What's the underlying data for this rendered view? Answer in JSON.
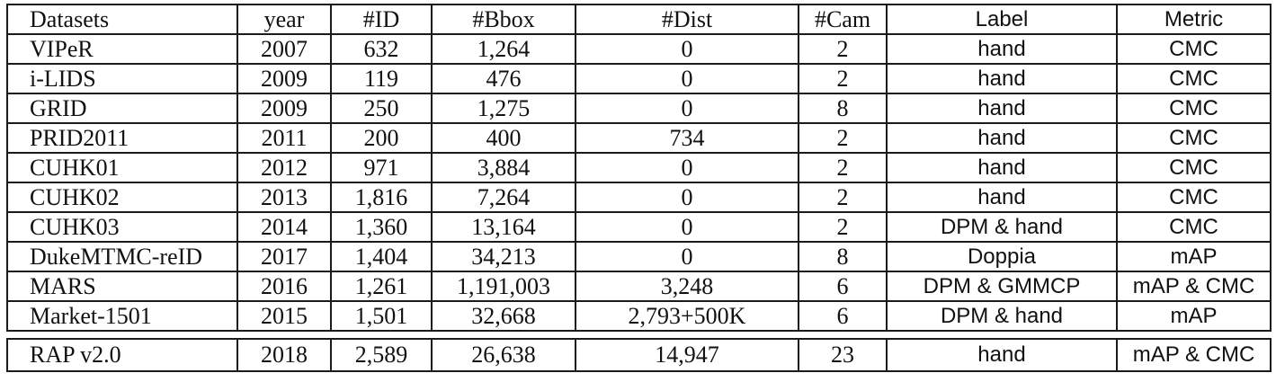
{
  "headers": [
    "Datasets",
    "year",
    "#ID",
    "#Bbox",
    "#Dist",
    "#Cam",
    "Label",
    "Metric"
  ],
  "rows": [
    [
      "VIPeR",
      "2007",
      "632",
      "1,264",
      "0",
      "2",
      "hand",
      "CMC"
    ],
    [
      "i-LIDS",
      "2009",
      "119",
      "476",
      "0",
      "2",
      "hand",
      "CMC"
    ],
    [
      "GRID",
      "2009",
      "250",
      "1,275",
      "0",
      "8",
      "hand",
      "CMC"
    ],
    [
      "PRID2011",
      "2011",
      "200",
      "400",
      "734",
      "2",
      "hand",
      "CMC"
    ],
    [
      "CUHK01",
      "2012",
      "971",
      "3,884",
      "0",
      "2",
      "hand",
      "CMC"
    ],
    [
      "CUHK02",
      "2013",
      "1,816",
      "7,264",
      "0",
      "2",
      "hand",
      "CMC"
    ],
    [
      "CUHK03",
      "2014",
      "1,360",
      "13,164",
      "0",
      "2",
      "DPM & hand",
      "CMC"
    ],
    [
      "DukeMTMC-reID",
      "2017",
      "1,404",
      "34,213",
      "0",
      "8",
      "Doppia",
      "mAP"
    ],
    [
      "MARS",
      "2016",
      "1,261",
      "1,191,003",
      "3,248",
      "6",
      "DPM & GMMCP",
      "mAP & CMC"
    ],
    [
      "Market-1501",
      "2015",
      "1,501",
      "32,668",
      "2,793+500K",
      "6",
      "DPM & hand",
      "mAP"
    ]
  ],
  "highlight_row": [
    "RAP v2.0",
    "2018",
    "2,589",
    "26,638",
    "14,947",
    "23",
    "hand",
    "mAP & CMC"
  ]
}
